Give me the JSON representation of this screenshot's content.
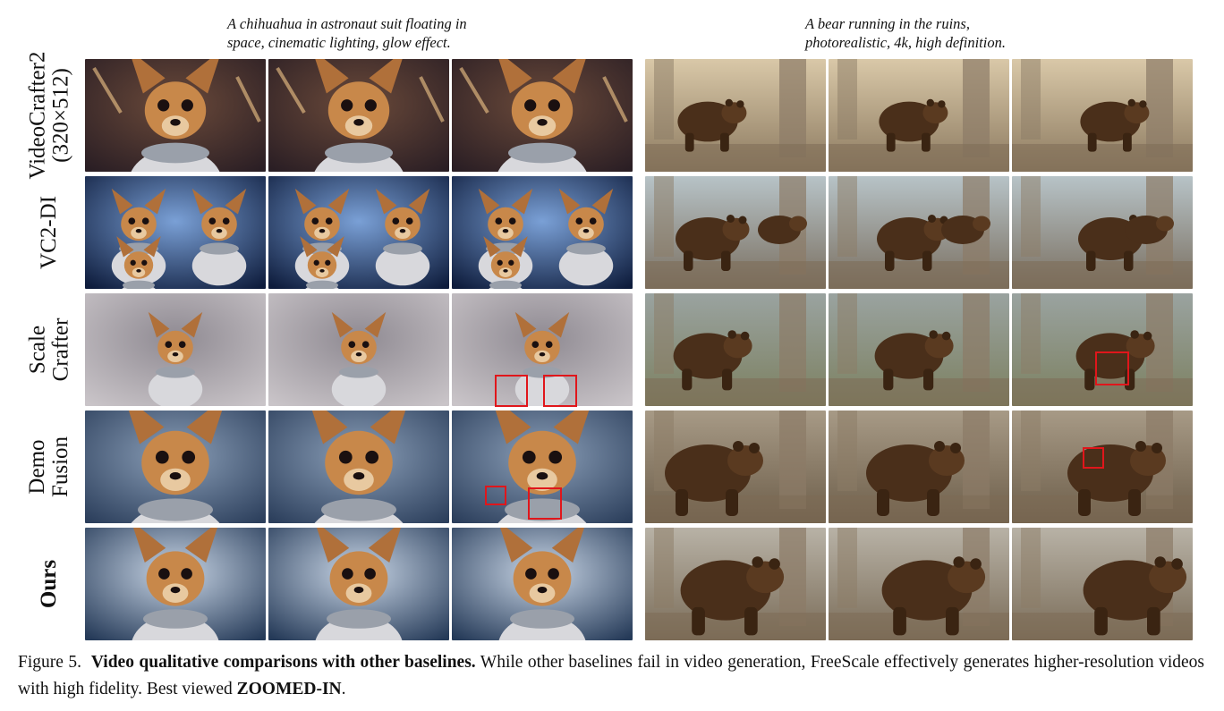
{
  "prompts": {
    "left": [
      "A chihuahua in astronaut suit floating in",
      "space, cinematic lighting, glow effect."
    ],
    "right": [
      "A bear running in the ruins,",
      "photorealistic, 4k, high definition."
    ]
  },
  "rows": [
    {
      "id": "videocrafter2",
      "label_lines": [
        "VideoCrafter2",
        "(320×512)"
      ],
      "bold": false
    },
    {
      "id": "vc2-di",
      "label_lines": [
        "VC2-DI"
      ],
      "bold": false
    },
    {
      "id": "scalecrafter",
      "label_lines": [
        "Scale",
        "Crafter"
      ],
      "bold": false
    },
    {
      "id": "demofusion",
      "label_lines": [
        "Demo",
        "Fusion"
      ],
      "bold": false
    },
    {
      "id": "ours",
      "label_lines": [
        "Ours"
      ],
      "bold": true
    }
  ],
  "caption": {
    "figure_label": "Figure 5.",
    "bold_title": "Video qualitative comparisons with other baselines.",
    "body": "While other baselines fail in video generation, FreeScale effectively generates higher-resolution videos with high fidelity. Best viewed",
    "bold_end": "ZOOMED-IN",
    "period": "."
  },
  "colors": {
    "highlight_box": "#e0161b"
  }
}
